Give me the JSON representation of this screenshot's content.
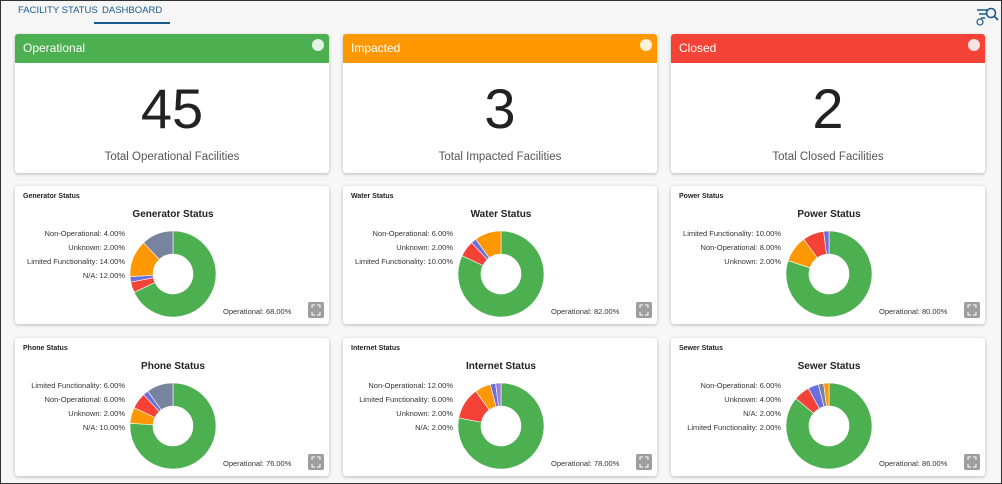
{
  "tabs": [
    "FACILITY STATUS",
    "DASHBOARD"
  ],
  "summary_cards": [
    {
      "title": "Operational",
      "count": 45,
      "caption": "Total Operational Facilities",
      "color": "#4caf50"
    },
    {
      "title": "Impacted",
      "count": 3,
      "caption": "Total Impacted Facilities",
      "color": "#ff9800"
    },
    {
      "title": "Closed",
      "count": 2,
      "caption": "Total Closed Facilities",
      "color": "#f44336"
    }
  ],
  "charts": [
    {
      "type": "donut",
      "panel_title": "Generator Status",
      "title": "Generator Status",
      "values": [
        68,
        4,
        2,
        14,
        12
      ],
      "value_labels": [
        "Operational: 68.00%",
        "Non-Operational: 4.00%",
        "Unknown: 2.00%",
        "Limited Functionality: 14.00%",
        "N/A: 12.00%"
      ],
      "colors": [
        "#4caf50",
        "#f44336",
        "#6a6fe0",
        "#ff9800",
        "#78849e"
      ]
    },
    {
      "type": "donut",
      "panel_title": "Water Status",
      "title": "Water Status",
      "values": [
        82,
        6,
        2,
        10
      ],
      "value_labels": [
        "Operational: 82.00%",
        "Non-Operational: 6.00%",
        "Unknown: 2.00%",
        "Limited Functionality: 10.00%"
      ],
      "colors": [
        "#4caf50",
        "#f44336",
        "#6a6fe0",
        "#ff9800"
      ]
    },
    {
      "type": "donut",
      "panel_title": "Power Status",
      "title": "Power Status",
      "values": [
        80,
        10,
        8,
        2
      ],
      "value_labels": [
        "Operational: 80.00%",
        "Limited Functionality: 10.00%",
        "Non-Operational: 8.00%",
        "Unknown: 2.00%"
      ],
      "colors": [
        "#4caf50",
        "#ff9800",
        "#f44336",
        "#6a6fe0"
      ]
    },
    {
      "type": "donut",
      "panel_title": "Phone Status",
      "title": "Phone Status",
      "values": [
        76,
        6,
        6,
        2,
        10
      ],
      "value_labels": [
        "Operational: 76.00%",
        "Limited Functionality: 6.00%",
        "Non-Operational: 6.00%",
        "Unknown: 2.00%",
        "N/A: 10.00%"
      ],
      "colors": [
        "#4caf50",
        "#ff9800",
        "#f44336",
        "#6a6fe0",
        "#78849e"
      ]
    },
    {
      "type": "donut",
      "panel_title": "Internet Status",
      "title": "Internet Status",
      "values": [
        78,
        12,
        6,
        2,
        2
      ],
      "value_labels": [
        "Operational: 78.00%",
        "Non-Operational: 12.00%",
        "Limited Functionality: 6.00%",
        "Unknown: 2.00%",
        "N/A: 2.00%"
      ],
      "colors": [
        "#4caf50",
        "#f44336",
        "#ff9800",
        "#6a6fe0",
        "#9b7fd4"
      ]
    },
    {
      "type": "donut",
      "panel_title": "Sewer Status",
      "title": "Sewer Status",
      "values": [
        86,
        6,
        4,
        2,
        2
      ],
      "value_labels": [
        "Operational: 86.00%",
        "Non-Operational: 6.00%",
        "Unknown: 4.00%",
        "N/A: 2.00%",
        "Limited Functionality: 2.00%"
      ],
      "colors": [
        "#4caf50",
        "#f44336",
        "#6a6fe0",
        "#78849e",
        "#ff9800"
      ]
    }
  ]
}
